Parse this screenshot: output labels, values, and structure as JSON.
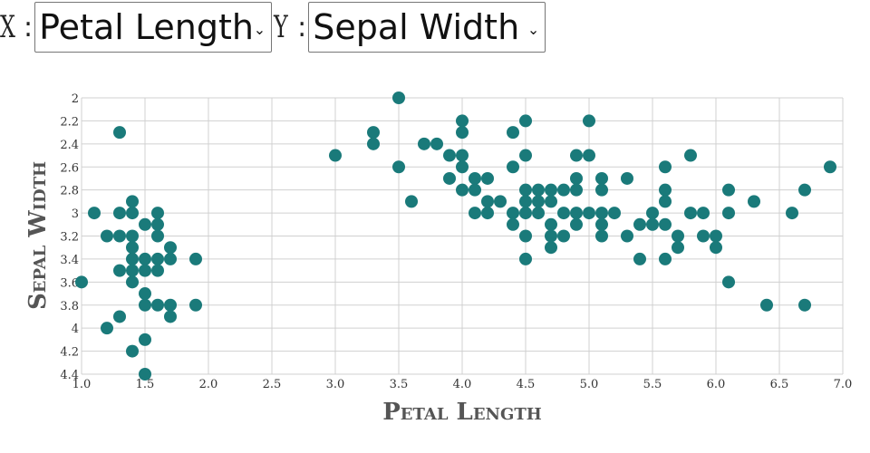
{
  "controls": {
    "x_label": "X",
    "y_label": "Y",
    "colon": ":",
    "x_selected": "Petal Length",
    "y_selected": "Sepal Width"
  },
  "colors": {
    "point": "#1a7a7a",
    "grid": "#d0d0d0",
    "axis": "#999999"
  },
  "chart_data": {
    "type": "scatter",
    "xlabel": "Petal Length",
    "ylabel": "Sepal Width",
    "xlim": [
      1.0,
      7.0
    ],
    "ylim": [
      2.0,
      4.4
    ],
    "y_inverted": true,
    "grid": true,
    "x_ticks": [
      "1.0",
      "1.5",
      "2.0",
      "2.5",
      "3.0",
      "3.5",
      "4.0",
      "4.5",
      "5.0",
      "5.5",
      "6.0",
      "6.5",
      "7.0"
    ],
    "y_ticks": [
      "2",
      "2.2",
      "2.4",
      "2.6",
      "2.8",
      "3",
      "3.2",
      "3.4",
      "3.6",
      "3.8",
      "4",
      "4.2",
      "4.4"
    ],
    "points": [
      [
        1.0,
        3.6
      ],
      [
        1.1,
        3.0
      ],
      [
        1.2,
        3.2
      ],
      [
        1.2,
        4.0
      ],
      [
        1.3,
        2.3
      ],
      [
        1.3,
        3.0
      ],
      [
        1.3,
        3.2
      ],
      [
        1.3,
        3.5
      ],
      [
        1.3,
        3.9
      ],
      [
        1.4,
        2.9
      ],
      [
        1.4,
        3.0
      ],
      [
        1.4,
        3.2
      ],
      [
        1.4,
        3.3
      ],
      [
        1.4,
        3.4
      ],
      [
        1.4,
        3.5
      ],
      [
        1.4,
        3.6
      ],
      [
        1.4,
        4.2
      ],
      [
        1.5,
        3.1
      ],
      [
        1.5,
        3.4
      ],
      [
        1.5,
        3.5
      ],
      [
        1.5,
        3.7
      ],
      [
        1.5,
        3.8
      ],
      [
        1.5,
        4.1
      ],
      [
        1.5,
        4.4
      ],
      [
        1.6,
        3.0
      ],
      [
        1.6,
        3.1
      ],
      [
        1.6,
        3.2
      ],
      [
        1.6,
        3.4
      ],
      [
        1.6,
        3.5
      ],
      [
        1.6,
        3.8
      ],
      [
        1.7,
        3.3
      ],
      [
        1.7,
        3.4
      ],
      [
        1.7,
        3.8
      ],
      [
        1.7,
        3.9
      ],
      [
        1.9,
        3.4
      ],
      [
        1.9,
        3.8
      ],
      [
        3.0,
        2.5
      ],
      [
        3.3,
        2.3
      ],
      [
        3.3,
        2.4
      ],
      [
        3.5,
        2.0
      ],
      [
        3.5,
        2.6
      ],
      [
        3.6,
        2.9
      ],
      [
        3.7,
        2.4
      ],
      [
        3.8,
        2.4
      ],
      [
        3.9,
        2.5
      ],
      [
        3.9,
        2.7
      ],
      [
        4.0,
        2.2
      ],
      [
        4.0,
        2.3
      ],
      [
        4.0,
        2.5
      ],
      [
        4.0,
        2.6
      ],
      [
        4.0,
        2.8
      ],
      [
        4.1,
        2.7
      ],
      [
        4.1,
        2.8
      ],
      [
        4.1,
        3.0
      ],
      [
        4.2,
        2.7
      ],
      [
        4.2,
        2.9
      ],
      [
        4.2,
        3.0
      ],
      [
        4.3,
        2.9
      ],
      [
        4.4,
        2.3
      ],
      [
        4.4,
        2.6
      ],
      [
        4.4,
        3.0
      ],
      [
        4.4,
        3.1
      ],
      [
        4.5,
        2.2
      ],
      [
        4.5,
        2.5
      ],
      [
        4.5,
        2.8
      ],
      [
        4.5,
        2.9
      ],
      [
        4.5,
        3.0
      ],
      [
        4.5,
        3.2
      ],
      [
        4.5,
        3.4
      ],
      [
        4.6,
        2.8
      ],
      [
        4.6,
        2.9
      ],
      [
        4.6,
        3.0
      ],
      [
        4.7,
        2.8
      ],
      [
        4.7,
        2.9
      ],
      [
        4.7,
        3.1
      ],
      [
        4.7,
        3.2
      ],
      [
        4.7,
        3.3
      ],
      [
        4.8,
        2.8
      ],
      [
        4.8,
        3.0
      ],
      [
        4.8,
        3.2
      ],
      [
        4.9,
        2.5
      ],
      [
        4.9,
        2.7
      ],
      [
        4.9,
        2.8
      ],
      [
        4.9,
        3.0
      ],
      [
        4.9,
        3.1
      ],
      [
        5.0,
        2.2
      ],
      [
        5.0,
        2.5
      ],
      [
        5.0,
        3.0
      ],
      [
        5.1,
        2.7
      ],
      [
        5.1,
        2.8
      ],
      [
        5.1,
        3.0
      ],
      [
        5.1,
        3.1
      ],
      [
        5.1,
        3.2
      ],
      [
        5.2,
        3.0
      ],
      [
        5.3,
        2.7
      ],
      [
        5.3,
        3.2
      ],
      [
        5.4,
        3.1
      ],
      [
        5.4,
        3.4
      ],
      [
        5.5,
        3.0
      ],
      [
        5.5,
        3.1
      ],
      [
        5.6,
        2.6
      ],
      [
        5.6,
        2.8
      ],
      [
        5.6,
        2.9
      ],
      [
        5.6,
        3.1
      ],
      [
        5.6,
        3.4
      ],
      [
        5.7,
        3.2
      ],
      [
        5.7,
        3.3
      ],
      [
        5.8,
        2.5
      ],
      [
        5.8,
        3.0
      ],
      [
        5.9,
        3.0
      ],
      [
        5.9,
        3.2
      ],
      [
        6.0,
        3.2
      ],
      [
        6.0,
        3.3
      ],
      [
        6.1,
        2.8
      ],
      [
        6.1,
        3.0
      ],
      [
        6.1,
        3.6
      ],
      [
        6.3,
        2.9
      ],
      [
        6.4,
        3.8
      ],
      [
        6.6,
        3.0
      ],
      [
        6.7,
        2.8
      ],
      [
        6.7,
        3.8
      ],
      [
        6.9,
        2.6
      ]
    ]
  }
}
